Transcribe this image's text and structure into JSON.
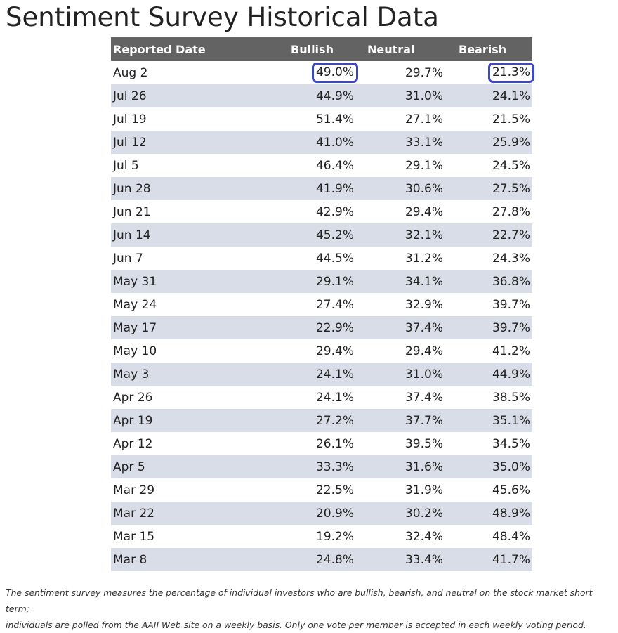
{
  "title": "Sentiment Survey Historical Data",
  "table": {
    "headers": [
      "Reported Date",
      "Bullish",
      "Neutral",
      "Bearish"
    ],
    "highlight_color": "#3b48c0",
    "header_bg": "#636363",
    "stripe_bg": "#d8dde8",
    "rows": [
      {
        "date": "Aug 2",
        "bullish": "49.0%",
        "neutral": "29.7%",
        "bearish": "21.3%",
        "highlight": [
          "bullish",
          "bearish"
        ]
      },
      {
        "date": "Jul 26",
        "bullish": "44.9%",
        "neutral": "31.0%",
        "bearish": "24.1%"
      },
      {
        "date": "Jul 19",
        "bullish": "51.4%",
        "neutral": "27.1%",
        "bearish": "21.5%"
      },
      {
        "date": "Jul 12",
        "bullish": "41.0%",
        "neutral": "33.1%",
        "bearish": "25.9%"
      },
      {
        "date": "Jul 5",
        "bullish": "46.4%",
        "neutral": "29.1%",
        "bearish": "24.5%"
      },
      {
        "date": "Jun 28",
        "bullish": "41.9%",
        "neutral": "30.6%",
        "bearish": "27.5%"
      },
      {
        "date": "Jun 21",
        "bullish": "42.9%",
        "neutral": "29.4%",
        "bearish": "27.8%"
      },
      {
        "date": "Jun 14",
        "bullish": "45.2%",
        "neutral": "32.1%",
        "bearish": "22.7%"
      },
      {
        "date": "Jun 7",
        "bullish": "44.5%",
        "neutral": "31.2%",
        "bearish": "24.3%"
      },
      {
        "date": "May 31",
        "bullish": "29.1%",
        "neutral": "34.1%",
        "bearish": "36.8%"
      },
      {
        "date": "May 24",
        "bullish": "27.4%",
        "neutral": "32.9%",
        "bearish": "39.7%"
      },
      {
        "date": "May 17",
        "bullish": "22.9%",
        "neutral": "37.4%",
        "bearish": "39.7%"
      },
      {
        "date": "May 10",
        "bullish": "29.4%",
        "neutral": "29.4%",
        "bearish": "41.2%"
      },
      {
        "date": "May 3",
        "bullish": "24.1%",
        "neutral": "31.0%",
        "bearish": "44.9%"
      },
      {
        "date": "Apr 26",
        "bullish": "24.1%",
        "neutral": "37.4%",
        "bearish": "38.5%"
      },
      {
        "date": "Apr 19",
        "bullish": "27.2%",
        "neutral": "37.7%",
        "bearish": "35.1%"
      },
      {
        "date": "Apr 12",
        "bullish": "26.1%",
        "neutral": "39.5%",
        "bearish": "34.5%"
      },
      {
        "date": "Apr 5",
        "bullish": "33.3%",
        "neutral": "31.6%",
        "bearish": "35.0%"
      },
      {
        "date": "Mar 29",
        "bullish": "22.5%",
        "neutral": "31.9%",
        "bearish": "45.6%"
      },
      {
        "date": "Mar 22",
        "bullish": "20.9%",
        "neutral": "30.2%",
        "bearish": "48.9%"
      },
      {
        "date": "Mar 15",
        "bullish": "19.2%",
        "neutral": "32.4%",
        "bearish": "48.4%"
      },
      {
        "date": "Mar 8",
        "bullish": "24.8%",
        "neutral": "33.4%",
        "bearish": "41.7%"
      }
    ]
  },
  "footnote": {
    "line1": "The sentiment survey measures the percentage of individual investors who are bullish, bearish, and neutral on the stock market short term;",
    "line2": "individuals are polled from the AAII Web site on a weekly basis. Only one vote per member is accepted in each weekly voting period."
  }
}
